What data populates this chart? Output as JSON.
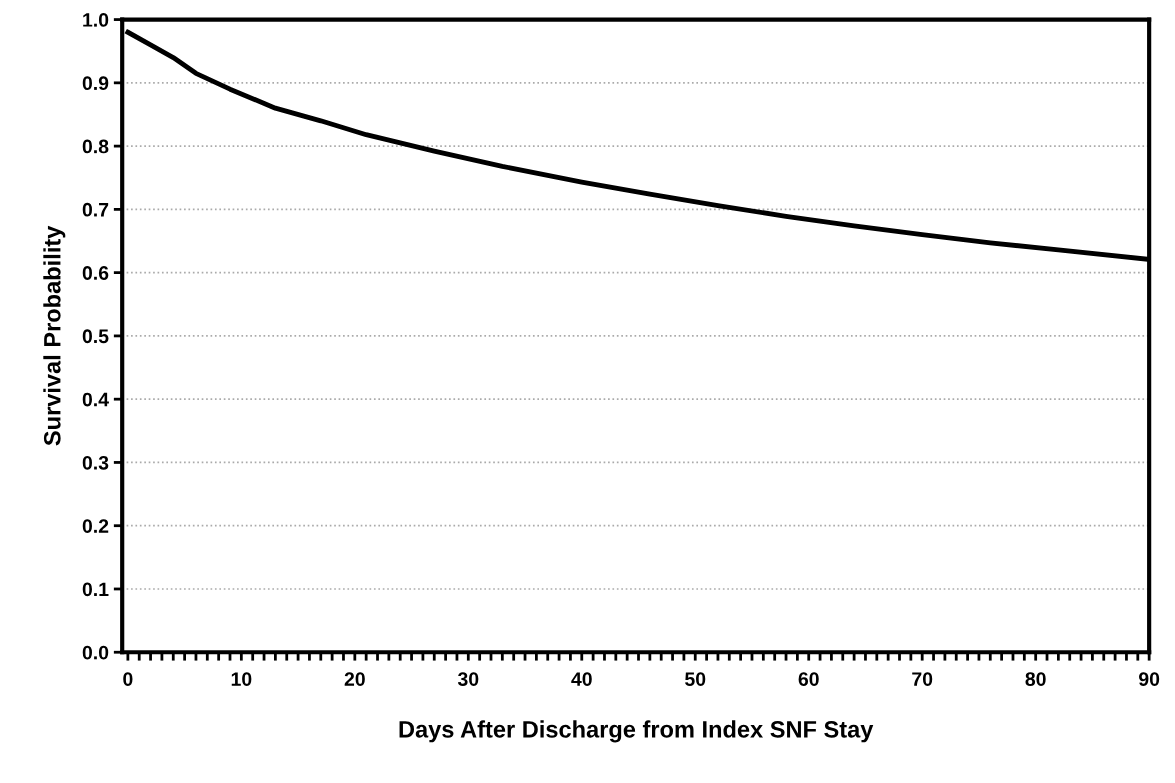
{
  "chart_data": {
    "type": "line",
    "xlabel": "Days After Discharge from Index SNF Stay",
    "ylabel": "Survival Probability",
    "x": [
      0,
      2,
      4,
      6,
      9,
      13,
      17,
      21,
      27,
      33,
      40,
      46,
      52,
      58,
      64,
      70,
      76,
      82,
      90
    ],
    "series": [
      {
        "color": "#000000",
        "values": [
          0.98,
          0.96,
          0.94,
          0.915,
          0.89,
          0.86,
          0.84,
          0.818,
          0.792,
          0.768,
          0.743,
          0.724,
          0.706,
          0.689,
          0.674,
          0.66,
          0.647,
          0.636,
          0.621
        ]
      }
    ],
    "xlim": [
      -0.5,
      90
    ],
    "xticks": [
      0,
      {
        "value": 1,
        "label": null
      },
      {
        "value": 2,
        "label": null
      },
      {
        "value": 3,
        "label": null
      },
      {
        "value": 4,
        "label": null
      },
      {
        "value": 5,
        "label": null
      },
      {
        "value": 6,
        "label": null
      },
      {
        "value": 7,
        "label": null
      },
      {
        "value": 8,
        "label": null
      },
      {
        "value": 9,
        "label": null
      },
      10,
      {
        "value": 11,
        "label": null
      },
      {
        "value": 12,
        "label": null
      },
      {
        "value": 13,
        "label": null
      },
      {
        "value": 14,
        "label": null
      },
      {
        "value": 15,
        "label": null
      },
      {
        "value": 16,
        "label": null
      },
      {
        "value": 17,
        "label": null
      },
      {
        "value": 18,
        "label": null
      },
      {
        "value": 19,
        "label": null
      },
      20,
      {
        "value": 21,
        "label": null
      },
      {
        "value": 22,
        "label": null
      },
      {
        "value": 23,
        "label": null
      },
      {
        "value": 24,
        "label": null
      },
      {
        "value": 25,
        "label": null
      },
      {
        "value": 26,
        "label": null
      },
      {
        "value": 27,
        "label": null
      },
      {
        "value": 28,
        "label": null
      },
      {
        "value": 29,
        "label": null
      },
      30,
      {
        "value": 31,
        "label": null
      },
      {
        "value": 32,
        "label": null
      },
      {
        "value": 33,
        "label": null
      },
      {
        "value": 34,
        "label": null
      },
      {
        "value": 35,
        "label": null
      },
      {
        "value": 36,
        "label": null
      },
      {
        "value": 37,
        "label": null
      },
      {
        "value": 38,
        "label": null
      },
      {
        "value": 39,
        "label": null
      },
      40,
      {
        "value": 41,
        "label": null
      },
      {
        "value": 42,
        "label": null
      },
      {
        "value": 43,
        "label": null
      },
      {
        "value": 44,
        "label": null
      },
      {
        "value": 45,
        "label": null
      },
      {
        "value": 46,
        "label": null
      },
      {
        "value": 47,
        "label": null
      },
      {
        "value": 48,
        "label": null
      },
      {
        "value": 49,
        "label": null
      },
      50,
      {
        "value": 51,
        "label": null
      },
      {
        "value": 52,
        "label": null
      },
      {
        "value": 53,
        "label": null
      },
      {
        "value": 54,
        "label": null
      },
      {
        "value": 55,
        "label": null
      },
      {
        "value": 56,
        "label": null
      },
      {
        "value": 57,
        "label": null
      },
      {
        "value": 58,
        "label": null
      },
      {
        "value": 59,
        "label": null
      },
      60,
      {
        "value": 61,
        "label": null
      },
      {
        "value": 62,
        "label": null
      },
      {
        "value": 63,
        "label": null
      },
      {
        "value": 64,
        "label": null
      },
      {
        "value": 65,
        "label": null
      },
      {
        "value": 66,
        "label": null
      },
      {
        "value": 67,
        "label": null
      },
      {
        "value": 68,
        "label": null
      },
      {
        "value": 69,
        "label": null
      },
      70,
      {
        "value": 71,
        "label": null
      },
      {
        "value": 72,
        "label": null
      },
      {
        "value": 73,
        "label": null
      },
      {
        "value": 74,
        "label": null
      },
      {
        "value": 75,
        "label": null
      },
      {
        "value": 76,
        "label": null
      },
      {
        "value": 77,
        "label": null
      },
      {
        "value": 78,
        "label": null
      },
      {
        "value": 79,
        "label": null
      },
      80,
      {
        "value": 81,
        "label": null
      },
      {
        "value": 82,
        "label": null
      },
      {
        "value": 83,
        "label": null
      },
      {
        "value": 84,
        "label": null
      },
      {
        "value": 85,
        "label": null
      },
      {
        "value": 86,
        "label": null
      },
      {
        "value": 87,
        "label": null
      },
      {
        "value": 88,
        "label": null
      },
      {
        "value": 89,
        "label": null
      },
      90
    ],
    "ylim": [
      0,
      1
    ],
    "yticks": [
      {
        "value": 0,
        "label": "0.0"
      },
      0.1,
      0.2,
      0.3,
      0.4,
      0.5,
      0.6,
      0.7,
      0.8,
      0.9,
      {
        "value": 1,
        "label": "1.0"
      }
    ],
    "grid": "y",
    "marker": "none",
    "line_style": "solid",
    "legend": false
  }
}
